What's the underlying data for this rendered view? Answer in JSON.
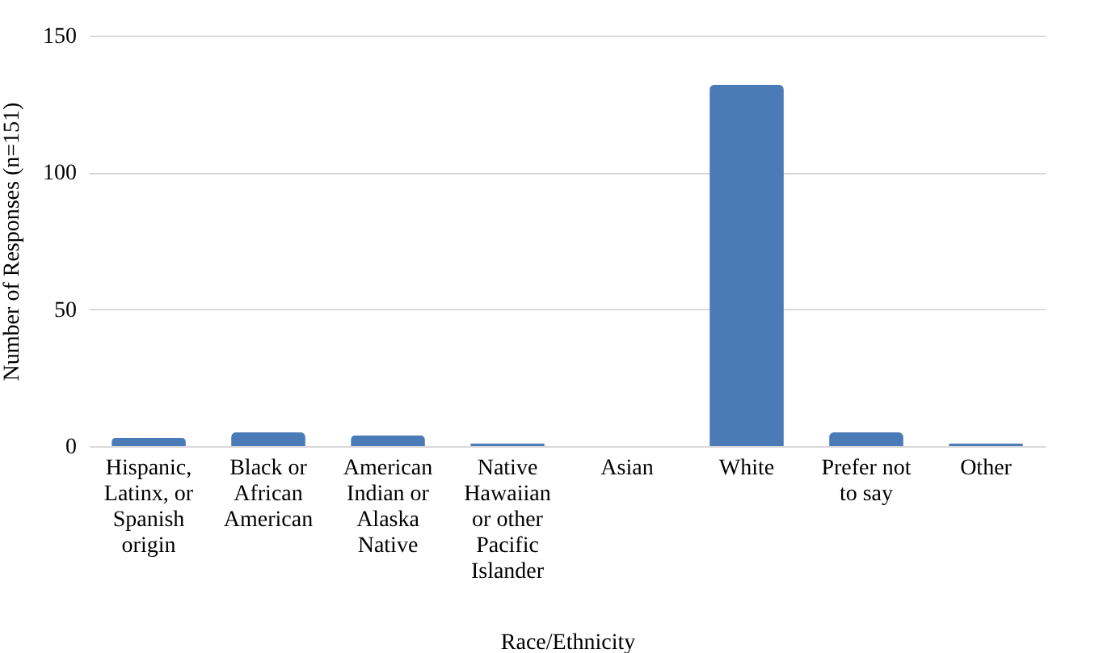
{
  "chart_data": {
    "type": "bar",
    "xlabel": "Race/Ethnicity",
    "ylabel": "Number of Responses (n=151)",
    "categories": [
      "Hispanic, Latinx, or Spanish origin",
      "Black or African American",
      "American Indian or Alaska Native",
      "Native Hawaiian or other Pacific Islander",
      "Asian",
      "White",
      "Prefer not to say",
      "Other"
    ],
    "values": [
      3,
      5,
      4,
      1,
      0,
      132,
      5,
      1
    ],
    "color": "#4a7bb7",
    "ylim": [
      0,
      150
    ],
    "yticks": [
      0,
      50,
      100,
      150
    ],
    "grid": "y"
  }
}
